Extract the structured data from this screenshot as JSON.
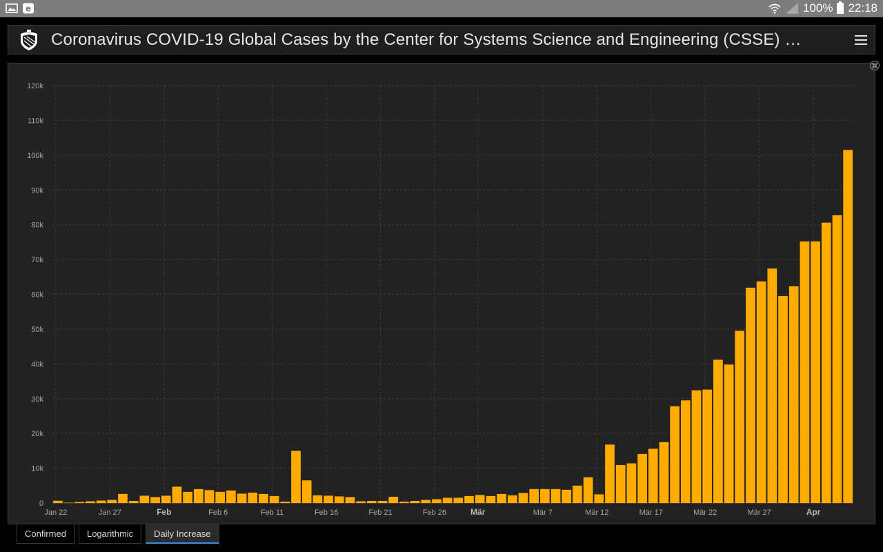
{
  "status_bar": {
    "battery": "100%",
    "time": "22:18"
  },
  "header": {
    "title": "Coronavirus COVID-19 Global Cases by the Center for Systems Science and Engineering (CSSE) …"
  },
  "tabs": [
    {
      "label": "Confirmed",
      "active": false
    },
    {
      "label": "Logarithmic",
      "active": false
    },
    {
      "label": "Daily Increase",
      "active": true
    }
  ],
  "colors": {
    "bar": "#ffab00",
    "background": "#222222",
    "grid": "#3c3c3c",
    "tab_accent": "#3e8bd9"
  },
  "chart_data": {
    "type": "bar",
    "ylim": [
      0,
      120000
    ],
    "grid": true,
    "y_ticks": [
      {
        "value": 0,
        "label": "0"
      },
      {
        "value": 10000,
        "label": "10k"
      },
      {
        "value": 20000,
        "label": "20k"
      },
      {
        "value": 30000,
        "label": "30k"
      },
      {
        "value": 40000,
        "label": "40k"
      },
      {
        "value": 50000,
        "label": "50k"
      },
      {
        "value": 60000,
        "label": "60k"
      },
      {
        "value": 70000,
        "label": "70k"
      },
      {
        "value": 80000,
        "label": "80k"
      },
      {
        "value": 90000,
        "label": "90k"
      },
      {
        "value": 100000,
        "label": "100k"
      },
      {
        "value": 110000,
        "label": "110k"
      },
      {
        "value": 120000,
        "label": "120k"
      }
    ],
    "x_ticks": [
      {
        "index": 0,
        "label": "Jan 22",
        "bold": false
      },
      {
        "index": 5,
        "label": "Jan 27",
        "bold": false
      },
      {
        "index": 10,
        "label": "Feb",
        "bold": true
      },
      {
        "index": 15,
        "label": "Feb 6",
        "bold": false
      },
      {
        "index": 20,
        "label": "Feb 11",
        "bold": false
      },
      {
        "index": 25,
        "label": "Feb 16",
        "bold": false
      },
      {
        "index": 30,
        "label": "Feb 21",
        "bold": false
      },
      {
        "index": 35,
        "label": "Feb 26",
        "bold": false
      },
      {
        "index": 39,
        "label": "Mär",
        "bold": true
      },
      {
        "index": 45,
        "label": "Mär 7",
        "bold": false
      },
      {
        "index": 50,
        "label": "Mär 12",
        "bold": false
      },
      {
        "index": 55,
        "label": "Mär 17",
        "bold": false
      },
      {
        "index": 60,
        "label": "Mär 22",
        "bold": false
      },
      {
        "index": 65,
        "label": "Mär 27",
        "bold": false
      },
      {
        "index": 70,
        "label": "Apr",
        "bold": true
      }
    ],
    "values": [
      650,
      100,
      300,
      500,
      700,
      900,
      2600,
      600,
      2100,
      1700,
      2100,
      4700,
      3200,
      4000,
      3700,
      3200,
      3600,
      2700,
      3000,
      2600,
      2000,
      400,
      15000,
      6500,
      2200,
      2100,
      1900,
      1700,
      500,
      600,
      600,
      1800,
      400,
      600,
      900,
      1100,
      1500,
      1500,
      2000,
      2300,
      2000,
      2600,
      2200,
      2900,
      4000,
      4000,
      4000,
      3800,
      5000,
      7400,
      2500,
      16800,
      10900,
      11400,
      14100,
      15600,
      17500,
      27800,
      29500,
      32400,
      32600,
      41200,
      39800,
      49500,
      61900,
      63700,
      67400,
      59500,
      62300,
      75200,
      75200,
      80600,
      82700,
      101500
    ]
  }
}
